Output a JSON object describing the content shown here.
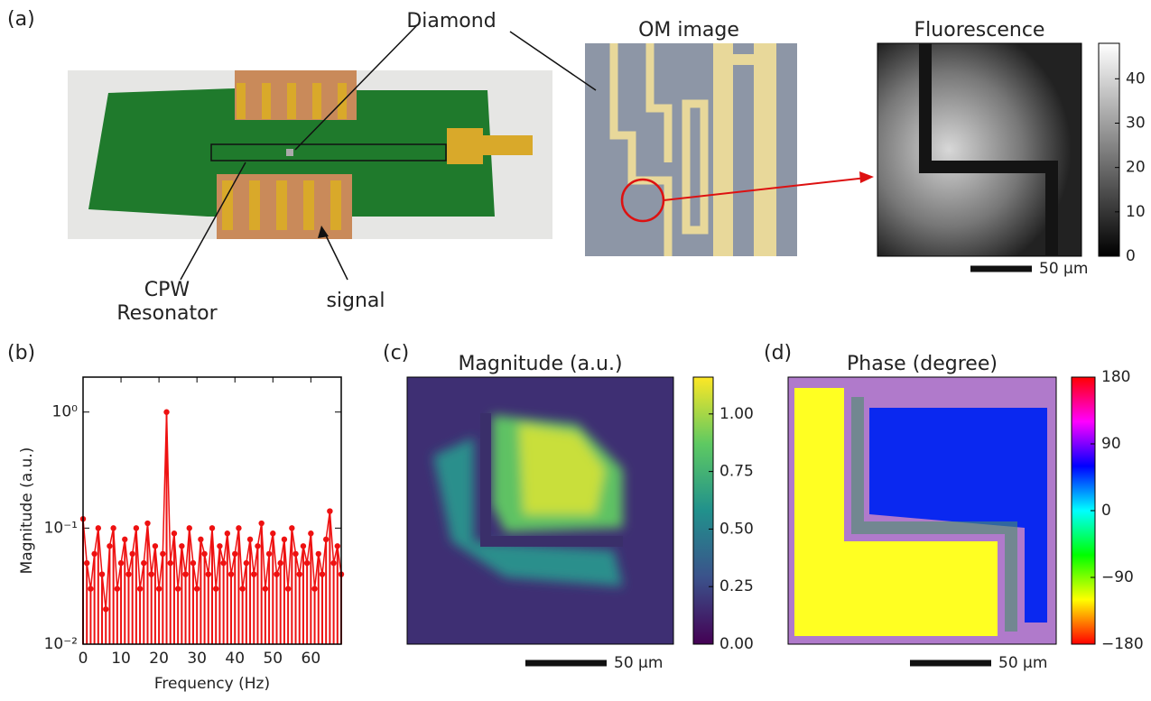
{
  "panel_labels": [
    "(a)",
    "(b)",
    "(c)",
    "(d)"
  ],
  "photo": {
    "diamond": "Diamond",
    "cpw": [
      "CPW",
      "Resonator"
    ],
    "signal": "signal"
  },
  "om_image": {
    "title": "OM image"
  },
  "chart_data": [
    {
      "type": "stem",
      "xlabel": "Frequency (Hz)",
      "ylabel": "Magnitude (a.u.)",
      "color": "#ee1111",
      "log_y": true,
      "x": [
        0,
        1,
        2,
        3,
        4,
        5,
        6,
        7,
        8,
        9,
        10,
        11,
        12,
        13,
        14,
        15,
        16,
        17,
        18,
        19,
        20,
        21,
        22,
        23,
        24,
        25,
        26,
        27,
        28,
        29,
        30,
        31,
        32,
        33,
        34,
        35,
        36,
        37,
        38,
        39,
        40,
        41,
        42,
        43,
        44,
        45,
        46,
        47,
        48,
        49,
        50,
        51,
        52,
        53,
        54,
        55,
        56,
        57,
        58,
        59,
        60,
        61,
        62,
        63,
        64,
        65,
        66,
        67,
        68
      ],
      "values": [
        0.12,
        0.05,
        0.03,
        0.06,
        0.1,
        0.04,
        0.02,
        0.07,
        0.1,
        0.03,
        0.05,
        0.08,
        0.04,
        0.06,
        0.1,
        0.03,
        0.05,
        0.11,
        0.04,
        0.07,
        0.03,
        0.06,
        1,
        0.05,
        0.09,
        0.03,
        0.07,
        0.04,
        0.1,
        0.05,
        0.03,
        0.08,
        0.06,
        0.04,
        0.1,
        0.03,
        0.07,
        0.05,
        0.09,
        0.04,
        0.06,
        0.1,
        0.03,
        0.05,
        0.08,
        0.04,
        0.07,
        0.11,
        0.03,
        0.06,
        0.09,
        0.04,
        0.05,
        0.08,
        0.03,
        0.1,
        0.06,
        0.04,
        0.07,
        0.05,
        0.09,
        0.03,
        0.06,
        0.04,
        0.08,
        0.14,
        0.05,
        0.07,
        0.04
      ],
      "xlim": [
        0,
        68
      ],
      "xticks": [
        0,
        10,
        20,
        30,
        40,
        50,
        60
      ],
      "ylim": [
        0.01,
        2
      ],
      "yticks": [
        {
          "value": 0.01,
          "label": "10⁻²"
        },
        {
          "value": 0.1,
          "label": "10⁻¹"
        },
        {
          "value": 1,
          "label": "10⁰"
        }
      ]
    },
    {
      "type": "colorbar",
      "title": "Fluorescence",
      "scale_bar": "50 μm",
      "colors": [
        "#000000",
        "#ffffff"
      ],
      "ylim": [
        0,
        48
      ],
      "yticks": [
        0,
        10,
        20,
        30,
        40
      ]
    },
    {
      "type": "colorbar",
      "title": "Magnitude (a.u.)",
      "scale_bar": "50 μm",
      "colors": [
        "#440154",
        "#3b528b",
        "#21918c",
        "#5ec962",
        "#fde725"
      ],
      "ylim": [
        0,
        1.16
      ],
      "yticks": [
        {
          "value": 0,
          "label": "0.00"
        },
        {
          "value": 0.25,
          "label": "0.25"
        },
        {
          "value": 0.5,
          "label": "0.50"
        },
        {
          "value": 0.75,
          "label": "0.75"
        },
        {
          "value": 1,
          "label": "1.00"
        }
      ]
    },
    {
      "type": "colorbar",
      "title": "Phase (degree)",
      "scale_bar": "50 μm",
      "colors": [
        "#ff0000",
        "#ffff00",
        "#00ff00",
        "#00ffff",
        "#0000ff",
        "#ff00ff",
        "#ff0000"
      ],
      "ylim": [
        -180,
        180
      ],
      "yticks": [
        {
          "value": -180,
          "label": "−180"
        },
        {
          "value": -90,
          "label": "−90"
        },
        0,
        90,
        180
      ]
    }
  ]
}
